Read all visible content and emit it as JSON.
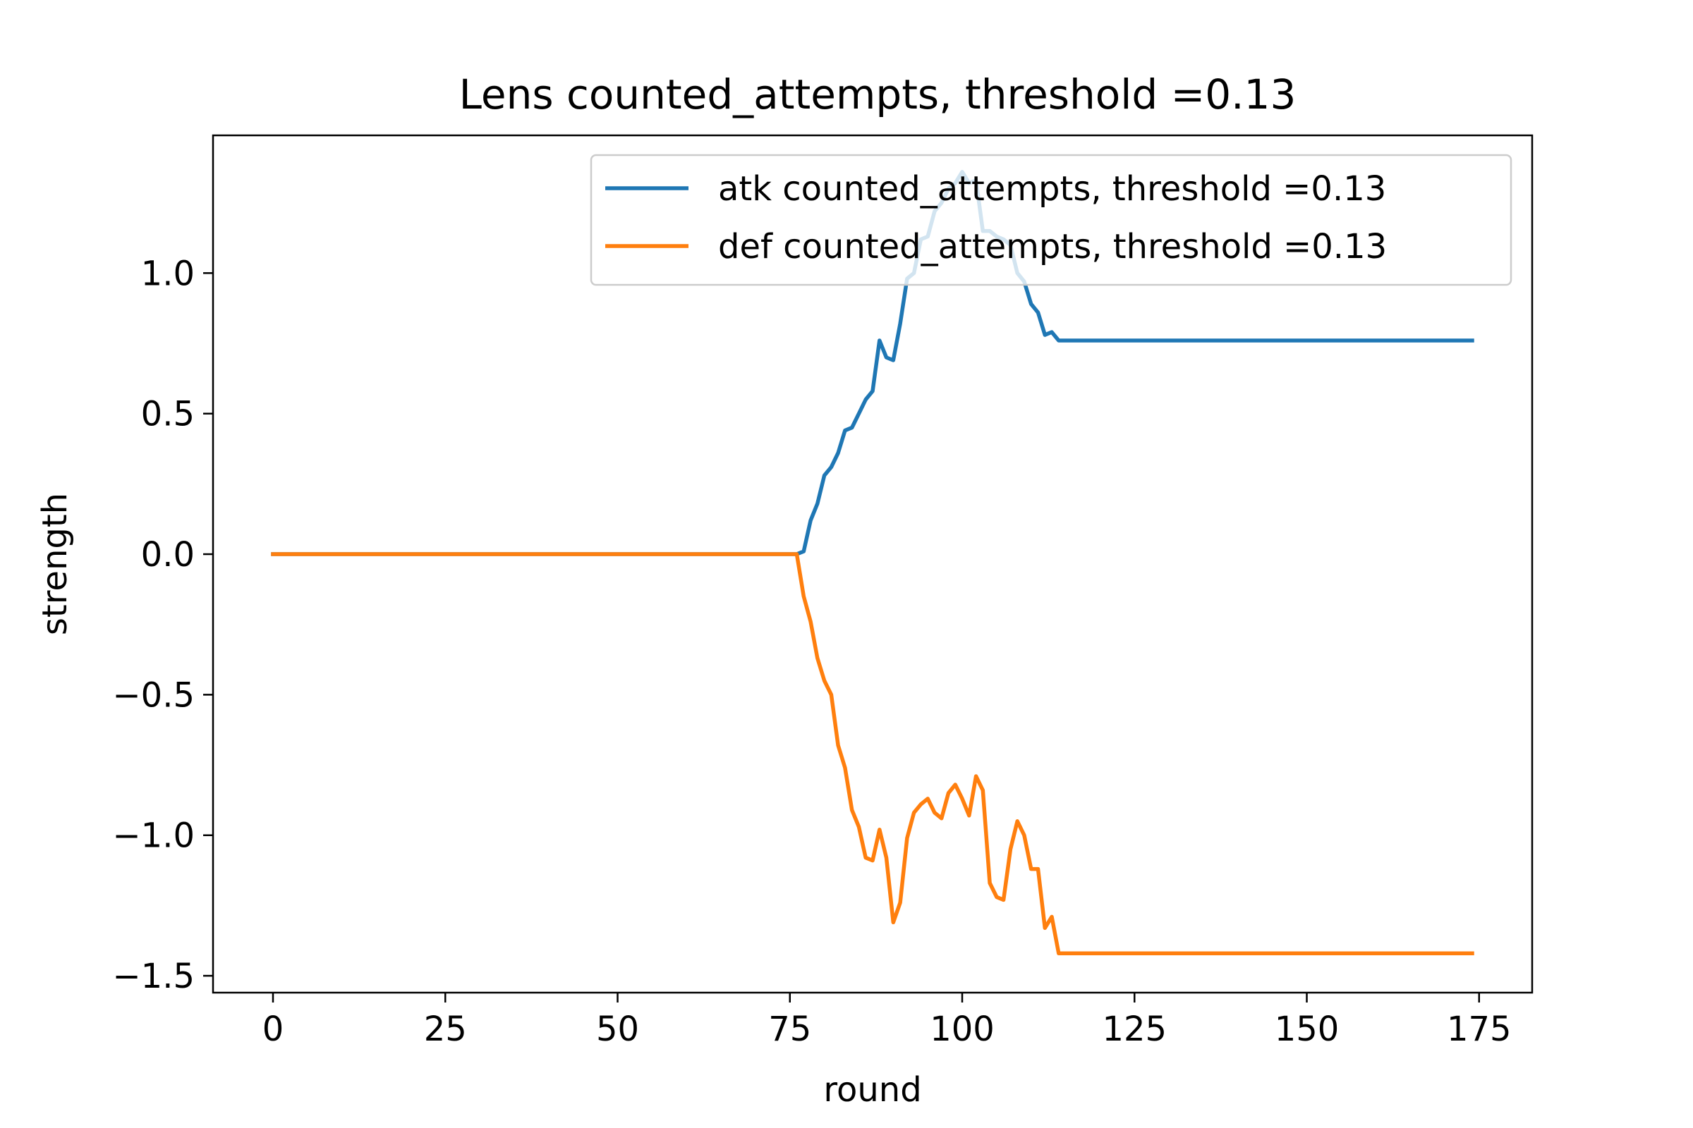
{
  "chart_data": {
    "type": "line",
    "title": "Lens counted_attempts, threshold =0.13",
    "xlabel": "round",
    "ylabel": "strength",
    "xlim": [
      -8.7,
      182.7
    ],
    "ylim": [
      -1.56,
      1.49
    ],
    "xticks": [
      0,
      25,
      50,
      75,
      100,
      125,
      150,
      175
    ],
    "yticks": [
      -1.5,
      -1.0,
      -0.5,
      0.0,
      0.5,
      1.0
    ],
    "xtick_labels": [
      "0",
      "25",
      "50",
      "75",
      "100",
      "125",
      "150",
      "175"
    ],
    "ytick_labels": [
      "−1.5",
      "−1.0",
      "−0.5",
      "0.0",
      "0.5",
      "1.0"
    ],
    "grid": false,
    "legend_position": "upper right",
    "series": [
      {
        "name": "atk counted_attempts, threshold =0.13",
        "color": "#1f77b4",
        "points": [
          [
            0,
            0
          ],
          [
            76,
            0
          ],
          [
            77,
            0.01
          ],
          [
            78,
            0.12
          ],
          [
            79,
            0.18
          ],
          [
            80,
            0.28
          ],
          [
            81,
            0.31
          ],
          [
            82,
            0.36
          ],
          [
            83,
            0.44
          ],
          [
            84,
            0.45
          ],
          [
            85,
            0.5
          ],
          [
            86,
            0.55
          ],
          [
            87,
            0.58
          ],
          [
            88,
            0.76
          ],
          [
            89,
            0.7
          ],
          [
            90,
            0.69
          ],
          [
            91,
            0.82
          ],
          [
            92,
            0.98
          ],
          [
            93,
            1.0
          ],
          [
            94,
            1.12
          ],
          [
            95,
            1.13
          ],
          [
            96,
            1.22
          ],
          [
            97,
            1.25
          ],
          [
            98,
            1.3
          ],
          [
            99,
            1.32
          ],
          [
            100,
            1.36
          ],
          [
            101,
            1.32
          ],
          [
            102,
            1.33
          ],
          [
            103,
            1.15
          ],
          [
            104,
            1.15
          ],
          [
            105,
            1.13
          ],
          [
            106,
            1.12
          ],
          [
            107,
            1.1
          ],
          [
            108,
            1.0
          ],
          [
            109,
            0.97
          ],
          [
            110,
            0.89
          ],
          [
            111,
            0.86
          ],
          [
            112,
            0.78
          ],
          [
            113,
            0.79
          ],
          [
            114,
            0.76
          ],
          [
            174,
            0.76
          ]
        ]
      },
      {
        "name": "def counted_attempts, threshold =0.13",
        "color": "#ff7f0e",
        "points": [
          [
            0,
            0
          ],
          [
            76,
            0
          ],
          [
            77,
            -0.15
          ],
          [
            78,
            -0.24
          ],
          [
            79,
            -0.37
          ],
          [
            80,
            -0.45
          ],
          [
            81,
            -0.5
          ],
          [
            82,
            -0.68
          ],
          [
            83,
            -0.76
          ],
          [
            84,
            -0.91
          ],
          [
            85,
            -0.97
          ],
          [
            86,
            -1.08
          ],
          [
            87,
            -1.09
          ],
          [
            88,
            -0.98
          ],
          [
            89,
            -1.08
          ],
          [
            90,
            -1.31
          ],
          [
            91,
            -1.24
          ],
          [
            92,
            -1.01
          ],
          [
            93,
            -0.92
          ],
          [
            94,
            -0.89
          ],
          [
            95,
            -0.87
          ],
          [
            96,
            -0.92
          ],
          [
            97,
            -0.94
          ],
          [
            98,
            -0.85
          ],
          [
            99,
            -0.82
          ],
          [
            100,
            -0.87
          ],
          [
            101,
            -0.93
          ],
          [
            102,
            -0.79
          ],
          [
            103,
            -0.84
          ],
          [
            104,
            -1.17
          ],
          [
            105,
            -1.22
          ],
          [
            106,
            -1.23
          ],
          [
            107,
            -1.05
          ],
          [
            108,
            -0.95
          ],
          [
            109,
            -1.0
          ],
          [
            110,
            -1.12
          ],
          [
            111,
            -1.12
          ],
          [
            112,
            -1.33
          ],
          [
            113,
            -1.29
          ],
          [
            114,
            -1.42
          ],
          [
            174,
            -1.42
          ]
        ]
      }
    ]
  }
}
